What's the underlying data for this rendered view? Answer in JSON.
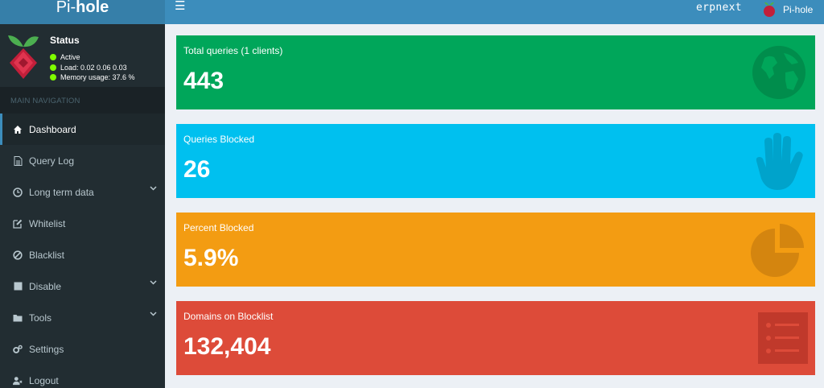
{
  "header": {
    "logo_prefix": "Pi-",
    "logo_bold": "hole",
    "hostname": "erpnext",
    "user": "Pi-hole"
  },
  "status": {
    "title": "Status",
    "lines": [
      "Active",
      "Load:  0.02  0.06  0.03",
      "Memory usage:  37.6 %"
    ],
    "dot_color": "#7fff00"
  },
  "nav": {
    "header": "MAIN NAVIGATION",
    "items": [
      {
        "label": "Dashboard",
        "icon": "home-icon"
      },
      {
        "label": "Query Log",
        "icon": "file-icon"
      },
      {
        "label": "Long term data",
        "icon": "clock-icon"
      },
      {
        "label": "Whitelist",
        "icon": "edit-icon"
      },
      {
        "label": "Blacklist",
        "icon": "ban-icon"
      },
      {
        "label": "Disable",
        "icon": "stop-icon"
      },
      {
        "label": "Tools",
        "icon": "folder-icon"
      },
      {
        "label": "Settings",
        "icon": "gears-icon"
      },
      {
        "label": "Logout",
        "icon": "user-times-icon"
      }
    ]
  },
  "stats": [
    {
      "label": "Total queries (1 clients)",
      "value": "443",
      "color": "#00a65a",
      "icon": "globe-icon"
    },
    {
      "label": "Queries Blocked",
      "value": "26",
      "color": "#00c0ef",
      "icon": "hand-icon"
    },
    {
      "label": "Percent Blocked",
      "value": "5.9%",
      "color": "#f39c12",
      "icon": "pie-chart-icon"
    },
    {
      "label": "Domains on Blocklist",
      "value": "132,404",
      "color": "#dd4b39",
      "icon": "list-icon"
    }
  ],
  "colors": {
    "header": "#3c8dbc",
    "logo_bar": "#367fa9",
    "sidebar": "#222d32",
    "content_bg": "#ecf0f5"
  }
}
